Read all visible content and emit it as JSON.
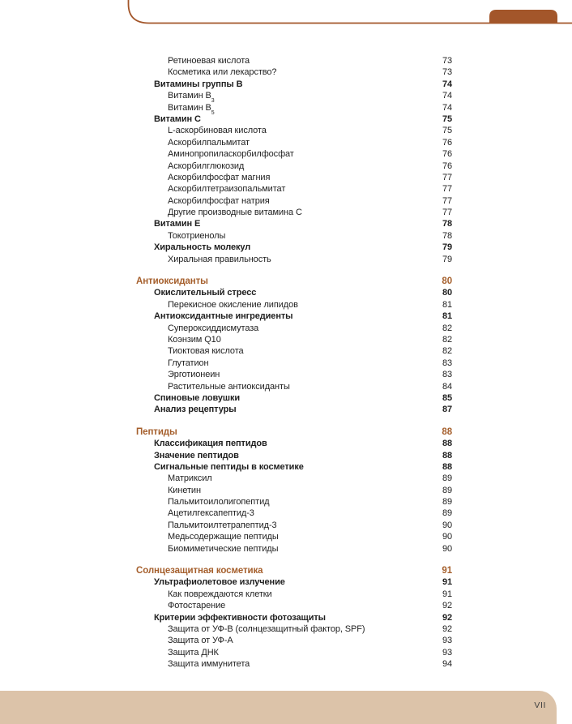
{
  "page": {
    "footer_page_number": "VII"
  },
  "decor": {
    "accent_brown": "#a3562a",
    "section_heading_brown": "#a55f2c",
    "footer_beige": "#dcc3a9",
    "footer_text_color": "#3d3d3d"
  },
  "toc": {
    "sections": [
      {
        "rows": [
          {
            "label": "Ретиноевая кислота",
            "page": "73",
            "level": 3,
            "style": "normal"
          },
          {
            "label": "Косметика или лекарство?",
            "page": "73",
            "level": 3,
            "style": "normal"
          },
          {
            "label": "Витамины группы B",
            "page": "74",
            "level": 2,
            "style": "bold"
          },
          {
            "label": "Витамин B",
            "sub": "3",
            "page": "74",
            "level": 3,
            "style": "normal"
          },
          {
            "label": "Витамин B",
            "sub": "5",
            "page": "74",
            "level": 3,
            "style": "normal"
          },
          {
            "label": "Витамин C",
            "page": "75",
            "level": 2,
            "style": "bold"
          },
          {
            "label": "L-аскорбиновая кислота",
            "page": "75",
            "level": 3,
            "style": "normal"
          },
          {
            "label": "Аскорбилпальмитат",
            "page": "76",
            "level": 3,
            "style": "normal"
          },
          {
            "label": "Аминопропиласкорбилфосфат",
            "page": "76",
            "level": 3,
            "style": "normal"
          },
          {
            "label": "Аскорбилглюкозид",
            "page": "76",
            "level": 3,
            "style": "normal"
          },
          {
            "label": "Аскорбилфосфат магния",
            "page": "77",
            "level": 3,
            "style": "normal"
          },
          {
            "label": "Аскорбилтетраизопальмитат",
            "page": "77",
            "level": 3,
            "style": "normal"
          },
          {
            "label": "Аскорбилфосфат натрия",
            "page": "77",
            "level": 3,
            "style": "normal"
          },
          {
            "label": "Другие производные витамина C",
            "page": "77",
            "level": 3,
            "style": "normal"
          },
          {
            "label": "Витамин E",
            "page": "78",
            "level": 2,
            "style": "bold"
          },
          {
            "label": "Токотриенолы",
            "page": "78",
            "level": 3,
            "style": "normal"
          },
          {
            "label": "Хиральность молекул",
            "page": "79",
            "level": 2,
            "style": "bold"
          },
          {
            "label": "Хиральная правильность",
            "page": "79",
            "level": 3,
            "style": "normal"
          }
        ]
      },
      {
        "rows": [
          {
            "label": "Антиоксиданты",
            "page": "80",
            "level": 1,
            "style": "section"
          },
          {
            "label": "Окислительный стресс",
            "page": "80",
            "level": 2,
            "style": "bold"
          },
          {
            "label": "Перекисное окисление липидов",
            "page": "81",
            "level": 3,
            "style": "normal"
          },
          {
            "label": "Антиоксидантные ингредиенты",
            "page": "81",
            "level": 2,
            "style": "bold"
          },
          {
            "label": "Супероксиддисмутаза",
            "page": "82",
            "level": 3,
            "style": "normal"
          },
          {
            "label": "Коэнзим Q10",
            "page": "82",
            "level": 3,
            "style": "normal"
          },
          {
            "label": "Тиоктовая кислота",
            "page": "82",
            "level": 3,
            "style": "normal"
          },
          {
            "label": "Глутатион",
            "page": "83",
            "level": 3,
            "style": "normal"
          },
          {
            "label": "Эрготионеин",
            "page": "83",
            "level": 3,
            "style": "normal"
          },
          {
            "label": "Растительные антиоксиданты",
            "page": "84",
            "level": 3,
            "style": "normal"
          },
          {
            "label": "Спиновые ловушки",
            "page": "85",
            "level": 2,
            "style": "bold"
          },
          {
            "label": "Анализ рецептуры",
            "page": "87",
            "level": 2,
            "style": "bold"
          }
        ]
      },
      {
        "rows": [
          {
            "label": "Пептиды",
            "page": "88",
            "level": 1,
            "style": "section"
          },
          {
            "label": "Классификация пептидов",
            "page": "88",
            "level": 2,
            "style": "bold"
          },
          {
            "label": "Значение пептидов",
            "page": "88",
            "level": 2,
            "style": "bold"
          },
          {
            "label": "Сигнальные пептиды в косметике",
            "page": "88",
            "level": 2,
            "style": "bold"
          },
          {
            "label": "Матриксил",
            "page": "89",
            "level": 3,
            "style": "normal"
          },
          {
            "label": "Кинетин",
            "page": "89",
            "level": 3,
            "style": "normal"
          },
          {
            "label": "Пальмитоилолигопептид",
            "page": "89",
            "level": 3,
            "style": "normal"
          },
          {
            "label": "Ацетилгексапептид-3",
            "page": "89",
            "level": 3,
            "style": "normal"
          },
          {
            "label": "Пальмитоилтетрапептид-3",
            "page": "90",
            "level": 3,
            "style": "normal"
          },
          {
            "label": "Медьсодержащие пептиды",
            "page": "90",
            "level": 3,
            "style": "normal"
          },
          {
            "label": "Биомиметические пептиды",
            "page": "90",
            "level": 3,
            "style": "normal"
          }
        ]
      },
      {
        "rows": [
          {
            "label": "Солнцезащитная косметика",
            "page": "91",
            "level": 1,
            "style": "section"
          },
          {
            "label": "Ультрафиолетовое излучение",
            "page": "91",
            "level": 2,
            "style": "bold"
          },
          {
            "label": "Как повреждаются клетки",
            "page": "91",
            "level": 3,
            "style": "normal"
          },
          {
            "label": "Фотостарение",
            "page": "92",
            "level": 3,
            "style": "normal"
          },
          {
            "label": "Критерии эффективности фотозащиты",
            "page": "92",
            "level": 2,
            "style": "bold"
          },
          {
            "label": "Защита от УФ-B (солнцезащитный фактор, SPF)",
            "page": "92",
            "level": 3,
            "style": "normal"
          },
          {
            "label": "Защита от УФ-А",
            "page": "93",
            "level": 3,
            "style": "normal"
          },
          {
            "label": "Защита ДНК",
            "page": "93",
            "level": 3,
            "style": "normal"
          },
          {
            "label": "Защита иммунитета",
            "page": "94",
            "level": 3,
            "style": "normal"
          }
        ]
      }
    ]
  }
}
